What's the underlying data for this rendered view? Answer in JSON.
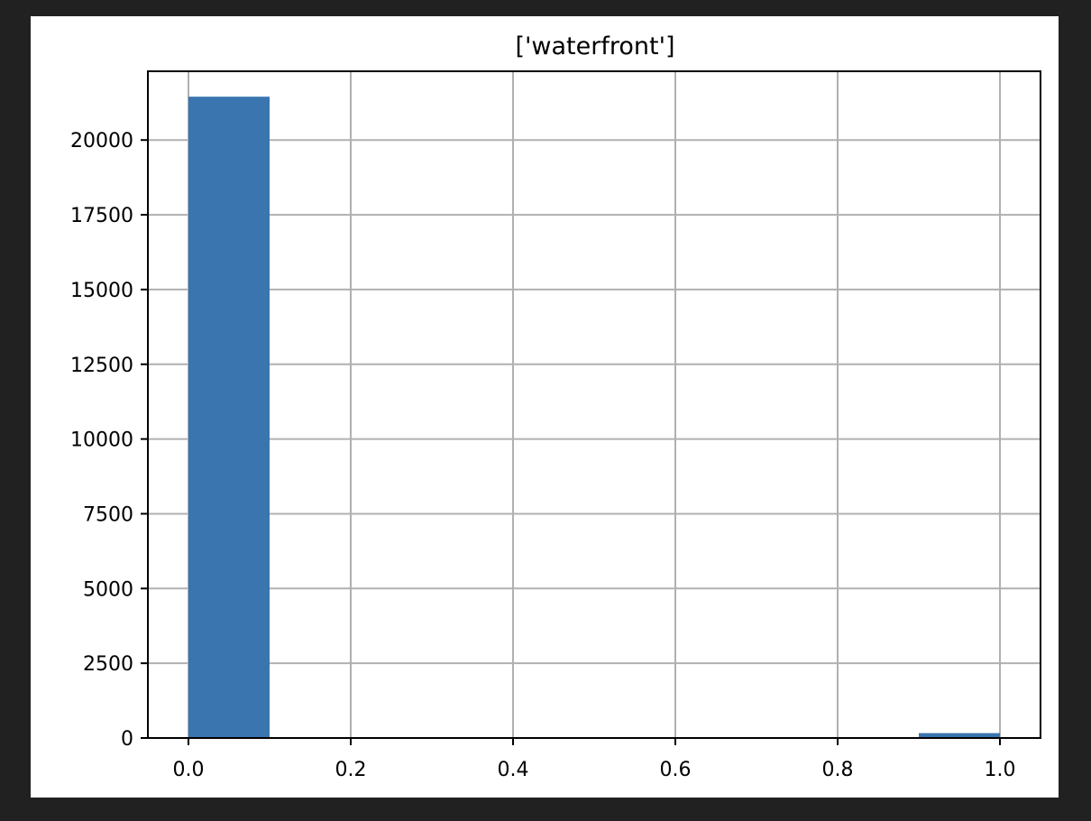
{
  "chart_data": {
    "type": "bar",
    "title": "['waterfront']",
    "xlabel": "",
    "ylabel": "",
    "bins": [
      {
        "x0": 0.0,
        "x1": 0.1,
        "value": 21450
      },
      {
        "x0": 0.1,
        "x1": 0.2,
        "value": 0
      },
      {
        "x0": 0.2,
        "x1": 0.3,
        "value": 0
      },
      {
        "x0": 0.3,
        "x1": 0.4,
        "value": 0
      },
      {
        "x0": 0.4,
        "x1": 0.5,
        "value": 0
      },
      {
        "x0": 0.5,
        "x1": 0.6,
        "value": 0
      },
      {
        "x0": 0.6,
        "x1": 0.7,
        "value": 0
      },
      {
        "x0": 0.7,
        "x1": 0.8,
        "value": 0
      },
      {
        "x0": 0.8,
        "x1": 0.9,
        "value": 0
      },
      {
        "x0": 0.9,
        "x1": 1.0,
        "value": 163
      }
    ],
    "xticks": [
      "0.0",
      "0.2",
      "0.4",
      "0.6",
      "0.8",
      "1.0"
    ],
    "xtick_values": [
      0.0,
      0.2,
      0.4,
      0.6,
      0.8,
      1.0
    ],
    "yticks": [
      "0",
      "2500",
      "5000",
      "7500",
      "10000",
      "12500",
      "15000",
      "17500",
      "20000"
    ],
    "ytick_values": [
      0,
      2500,
      5000,
      7500,
      10000,
      12500,
      15000,
      17500,
      20000
    ],
    "xlim": [
      -0.05,
      1.05
    ],
    "ylim": [
      0,
      22300
    ],
    "grid": true,
    "legend": "none",
    "bar_color": "#3a75b0"
  }
}
